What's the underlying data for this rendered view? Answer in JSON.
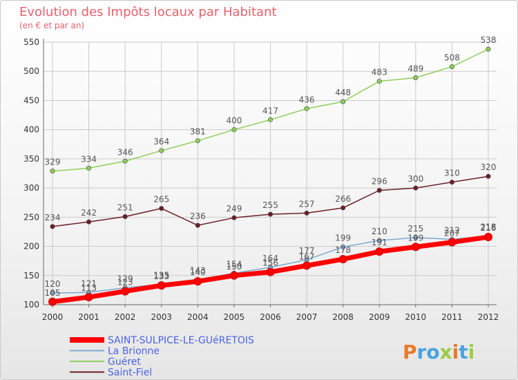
{
  "chart_data": {
    "type": "line",
    "title": "Evolution des Impôts locaux par Habitant",
    "subtitle": "(en € et par an)",
    "xlabel": "",
    "ylabel": "",
    "x": [
      "2000",
      "2001",
      "2002",
      "2003",
      "2004",
      "2005",
      "2006",
      "2007",
      "2008",
      "2009",
      "2010",
      "2011",
      "2012"
    ],
    "ylim": [
      100,
      550
    ],
    "yticks": [
      "100",
      "150",
      "200",
      "250",
      "300",
      "350",
      "400",
      "450",
      "500",
      "550"
    ],
    "grid": true,
    "legend_position": "bottom-left",
    "series": [
      {
        "name": "Saint-Fiel",
        "color": "#6b1f26",
        "values": [
          234,
          242,
          251,
          265,
          236,
          249,
          255,
          257,
          266,
          296,
          300,
          310,
          320
        ]
      },
      {
        "name": "Guéret",
        "color": "#8ecf5a",
        "values": [
          329,
          334,
          346,
          364,
          381,
          400,
          417,
          436,
          448,
          483,
          489,
          508,
          538
        ]
      },
      {
        "name": "La Brionne",
        "color": "#7aa9d0",
        "values": [
          120,
          121,
          129,
          135,
          143,
          154,
          164,
          177,
          199,
          210,
          215,
          212,
          218
        ]
      },
      {
        "name": "SAINT-SULPICE-LE-GUéRETOIS",
        "color": "#ff0000",
        "values": [
          105,
          113,
          123,
          133,
          140,
          150,
          156,
          167,
          178,
          191,
          199,
          207,
          216
        ]
      }
    ],
    "legend": [
      "SAINT-SULPICE-LE-GUéRETOIS",
      "La Brionne",
      "Guéret",
      "Saint-Fiel"
    ]
  },
  "brand": {
    "logo_text": "Proxiti"
  }
}
